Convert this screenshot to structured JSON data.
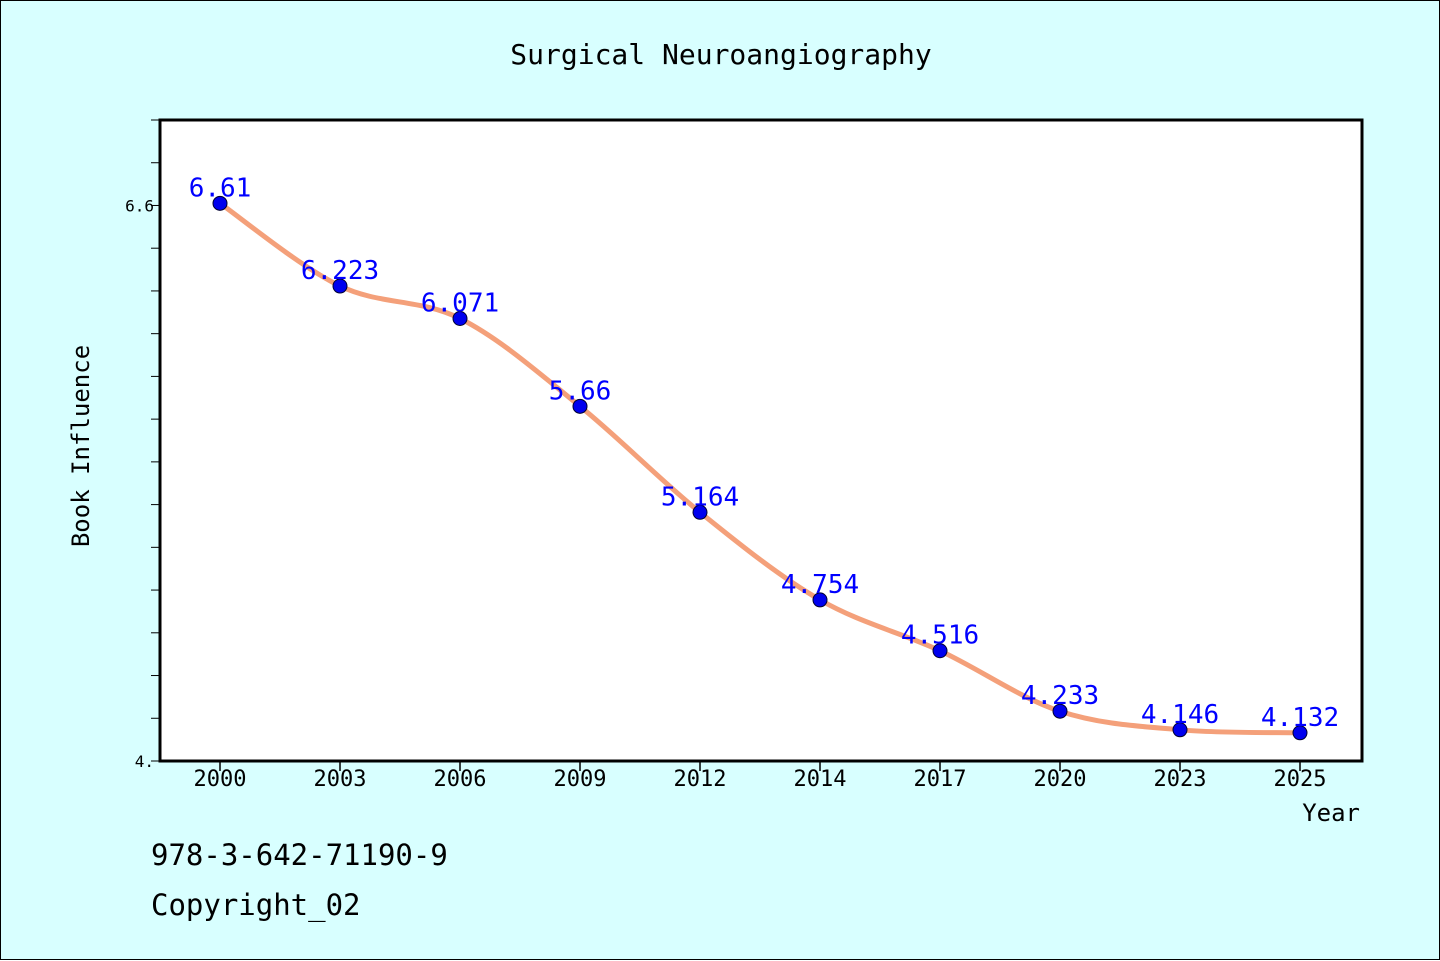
{
  "chart_data": {
    "type": "line",
    "title": "Surgical Neuroangiography",
    "xlabel": "Year",
    "ylabel": "Book Influence",
    "categories": [
      "2000",
      "2003",
      "2006",
      "2009",
      "2012",
      "2014",
      "2017",
      "2020",
      "2023",
      "2025"
    ],
    "series": [
      {
        "values": [
          6.61,
          6.223,
          6.071,
          5.66,
          5.164,
          4.754,
          4.516,
          4.233,
          4.146,
          4.132
        ],
        "labels": [
          "6.61",
          "6.223",
          "6.071",
          "5.66",
          "5.164",
          "4.754",
          "4.516",
          "4.233",
          "4.146",
          "4.132"
        ]
      }
    ],
    "ylim": [
      4.0,
      7.0
    ],
    "yticks_labeled": [
      {
        "value": 6.6,
        "label": "6.6"
      },
      {
        "value": 4.0,
        "label": "4."
      }
    ],
    "yminor_step": 0.2,
    "grid": false,
    "legend": "none",
    "colors": {
      "line": "#f4a07a",
      "marker": "#0000ee",
      "data_label": "#0000ff",
      "background": "#d8ffff",
      "plot_background": "#ffffff"
    }
  },
  "footer": {
    "isbn": "978-3-642-71190-9",
    "copyright": "Copyright_02"
  }
}
